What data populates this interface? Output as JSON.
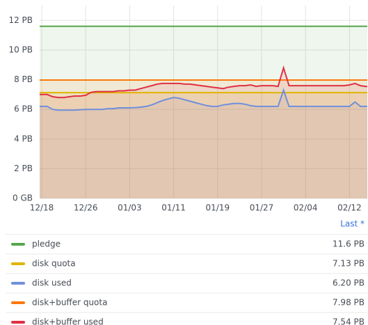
{
  "chart_data": {
    "type": "line",
    "x": [
      "12/18",
      "12/19",
      "12/20",
      "12/21",
      "12/22",
      "12/23",
      "12/24",
      "12/25",
      "12/26",
      "12/27",
      "12/28",
      "12/29",
      "12/30",
      "12/31",
      "01/01",
      "01/02",
      "01/03",
      "01/04",
      "01/05",
      "01/06",
      "01/07",
      "01/08",
      "01/09",
      "01/10",
      "01/11",
      "01/12",
      "01/13",
      "01/14",
      "01/15",
      "01/16",
      "01/17",
      "01/18",
      "01/19",
      "01/20",
      "01/21",
      "01/22",
      "01/23",
      "01/24",
      "01/25",
      "01/26",
      "01/27",
      "01/28",
      "01/29",
      "01/30",
      "01/31",
      "02/01",
      "02/02",
      "02/03",
      "02/04",
      "02/05",
      "02/06",
      "02/07",
      "02/08",
      "02/09",
      "02/10",
      "02/11",
      "02/12",
      "02/13",
      "02/14",
      "02/15"
    ],
    "xticks": [
      "12/18",
      "12/26",
      "01/03",
      "01/11",
      "01/19",
      "01/27",
      "02/04",
      "02/12"
    ],
    "ylim": [
      0,
      13
    ],
    "yticks": [
      {
        "value": 0,
        "label": "0 GB"
      },
      {
        "value": 2,
        "label": "2 PB"
      },
      {
        "value": 4,
        "label": "4 PB"
      },
      {
        "value": 6,
        "label": "6 PB"
      },
      {
        "value": 8,
        "label": "8 PB"
      },
      {
        "value": 10,
        "label": "10 PB"
      },
      {
        "value": 12,
        "label": "12 PB"
      }
    ],
    "grid": true,
    "legend_header": "Last *",
    "series": [
      {
        "name": "pledge",
        "color": "#56a64b",
        "last_label": "11.6 PB",
        "values": [
          11.6,
          11.6,
          11.6,
          11.6,
          11.6,
          11.6,
          11.6,
          11.6,
          11.6,
          11.6,
          11.6,
          11.6,
          11.6,
          11.6,
          11.6,
          11.6,
          11.6,
          11.6,
          11.6,
          11.6,
          11.6,
          11.6,
          11.6,
          11.6,
          11.6,
          11.6,
          11.6,
          11.6,
          11.6,
          11.6,
          11.6,
          11.6,
          11.6,
          11.6,
          11.6,
          11.6,
          11.6,
          11.6,
          11.6,
          11.6,
          11.6,
          11.6,
          11.6,
          11.6,
          11.6,
          11.6,
          11.6,
          11.6,
          11.6,
          11.6,
          11.6,
          11.6,
          11.6,
          11.6,
          11.6,
          11.6,
          11.6,
          11.6,
          11.6,
          11.6
        ]
      },
      {
        "name": "disk quota",
        "color": "#e0b400",
        "last_label": "7.13 PB",
        "values": [
          7.13,
          7.13,
          7.13,
          7.13,
          7.13,
          7.13,
          7.13,
          7.13,
          7.13,
          7.13,
          7.13,
          7.13,
          7.13,
          7.13,
          7.13,
          7.13,
          7.13,
          7.13,
          7.13,
          7.13,
          7.13,
          7.13,
          7.13,
          7.13,
          7.13,
          7.13,
          7.13,
          7.13,
          7.13,
          7.13,
          7.13,
          7.13,
          7.13,
          7.13,
          7.13,
          7.13,
          7.13,
          7.13,
          7.13,
          7.13,
          7.13,
          7.13,
          7.13,
          7.13,
          7.13,
          7.13,
          7.13,
          7.13,
          7.13,
          7.13,
          7.13,
          7.13,
          7.13,
          7.13,
          7.13,
          7.13,
          7.13,
          7.13,
          7.13,
          7.13
        ]
      },
      {
        "name": "disk used",
        "color": "#6e8fdc",
        "last_label": "6.20 PB",
        "values": [
          6.2,
          6.2,
          6.0,
          5.95,
          5.95,
          5.95,
          5.95,
          5.98,
          6.0,
          6.0,
          6.0,
          6.0,
          6.05,
          6.05,
          6.1,
          6.1,
          6.1,
          6.12,
          6.15,
          6.2,
          6.3,
          6.45,
          6.6,
          6.7,
          6.8,
          6.75,
          6.65,
          6.55,
          6.45,
          6.35,
          6.25,
          6.2,
          6.2,
          6.3,
          6.35,
          6.4,
          6.4,
          6.35,
          6.25,
          6.2,
          6.2,
          6.2,
          6.2,
          6.2,
          7.3,
          6.2,
          6.2,
          6.2,
          6.2,
          6.2,
          6.2,
          6.2,
          6.2,
          6.2,
          6.2,
          6.2,
          6.2,
          6.5,
          6.2,
          6.2
        ]
      },
      {
        "name": "disk+buffer quota",
        "color": "#ff780a",
        "last_label": "7.98 PB",
        "values": [
          7.98,
          7.98,
          7.98,
          7.98,
          7.98,
          7.98,
          7.98,
          7.98,
          7.98,
          7.98,
          7.98,
          7.98,
          7.98,
          7.98,
          7.98,
          7.98,
          7.98,
          7.98,
          7.98,
          7.98,
          7.98,
          7.98,
          7.98,
          7.98,
          7.98,
          7.98,
          7.98,
          7.98,
          7.98,
          7.98,
          7.98,
          7.98,
          7.98,
          7.98,
          7.98,
          7.98,
          7.98,
          7.98,
          7.98,
          7.98,
          7.98,
          7.98,
          7.98,
          7.98,
          7.98,
          7.98,
          7.98,
          7.98,
          7.98,
          7.98,
          7.98,
          7.98,
          7.98,
          7.98,
          7.98,
          7.98,
          7.98,
          7.98,
          7.98,
          7.98
        ]
      },
      {
        "name": "disk+buffer used",
        "color": "#e02f44",
        "last_label": "7.54 PB",
        "values": [
          7.0,
          7.0,
          6.85,
          6.8,
          6.8,
          6.85,
          6.9,
          6.9,
          6.95,
          7.15,
          7.2,
          7.2,
          7.2,
          7.2,
          7.25,
          7.25,
          7.3,
          7.3,
          7.4,
          7.5,
          7.6,
          7.7,
          7.75,
          7.75,
          7.75,
          7.75,
          7.7,
          7.7,
          7.65,
          7.6,
          7.55,
          7.5,
          7.45,
          7.4,
          7.5,
          7.55,
          7.6,
          7.6,
          7.65,
          7.55,
          7.6,
          7.6,
          7.6,
          7.55,
          8.8,
          7.6,
          7.6,
          7.6,
          7.6,
          7.6,
          7.6,
          7.6,
          7.6,
          7.6,
          7.6,
          7.6,
          7.65,
          7.75,
          7.6,
          7.54
        ]
      }
    ]
  }
}
